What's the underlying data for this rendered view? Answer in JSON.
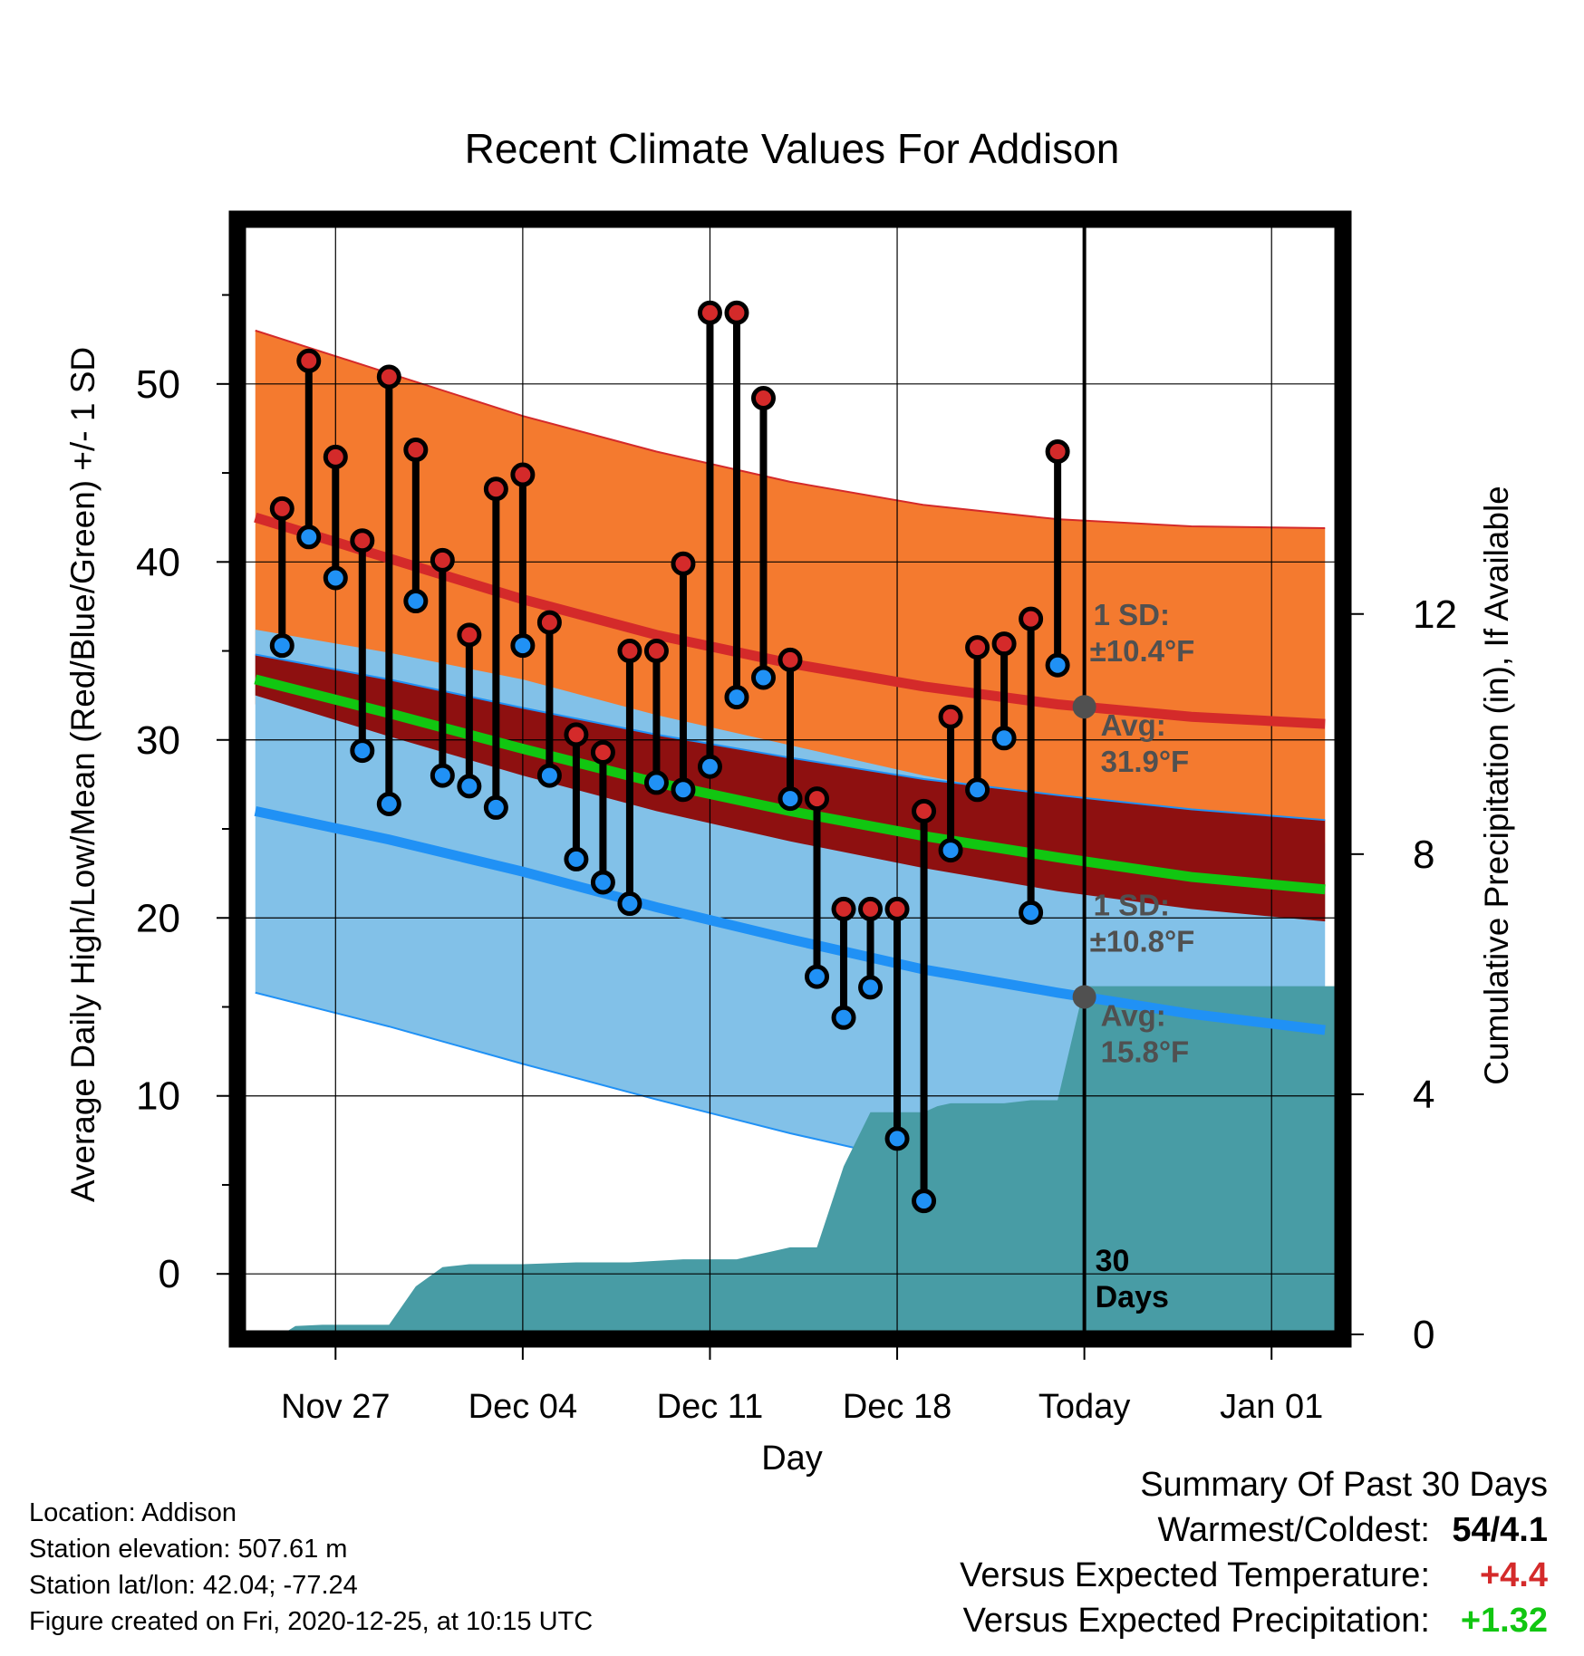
{
  "chart_data": {
    "type": "line",
    "title": "Recent Climate Values For Addison",
    "xlabel": "Day",
    "ylabel": "Average Daily High/Low/Mean (Red/Blue/Green) +/- 1 SD",
    "y2label": "Cumulative Precipitation (in), If Available",
    "x_ticks": [
      "Nov 27",
      "Dec 04",
      "Dec 11",
      "Dec 18",
      "Today",
      "Jan 01"
    ],
    "x_tick_days": [
      3,
      10,
      17,
      24,
      31,
      38
    ],
    "xlim": [
      -0.5,
      40.5
    ],
    "ylim": [
      -3.4,
      59
    ],
    "y_ticks": [
      0,
      10,
      20,
      30,
      40,
      50
    ],
    "y2lim": [
      0,
      18.5
    ],
    "y2_ticks": [
      0,
      4,
      8,
      12
    ],
    "grid": true,
    "today_day": 31,
    "colors": {
      "high": "#d42a2a",
      "low": "#2091f5",
      "mean": "#11c611",
      "high_band": "#f47a2f",
      "low_band": "#82c1e8",
      "overlap_band": "#8e1010",
      "precip": "#489ca5",
      "annotation": "#505050"
    },
    "normals": {
      "x": [
        0,
        5,
        10,
        15,
        20,
        25,
        30,
        35,
        40
      ],
      "high_avg": [
        42.5,
        40.2,
        37.9,
        35.9,
        34.3,
        33.0,
        32.0,
        31.3,
        30.9
      ],
      "high_sd_upper": [
        53.0,
        50.6,
        48.2,
        46.2,
        44.5,
        43.2,
        42.4,
        42.0,
        41.9
      ],
      "low_avg": [
        26.0,
        24.4,
        22.6,
        20.6,
        18.8,
        17.1,
        15.8,
        14.6,
        13.7
      ],
      "low_sd_lower": [
        15.8,
        13.9,
        11.8,
        9.8,
        7.9,
        6.2,
        5.0,
        4.0,
        3.2
      ],
      "mean_avg": [
        33.4,
        31.5,
        29.5,
        27.6,
        26.0,
        24.6,
        23.4,
        22.3,
        21.6
      ],
      "overlap_upper": [
        34.8,
        33.4,
        31.8,
        30.3,
        29.0,
        27.8,
        26.9,
        26.1,
        25.5
      ],
      "overlap_lower": [
        32.5,
        30.2,
        28.0,
        26.0,
        24.3,
        22.8,
        21.5,
        20.5,
        19.8
      ]
    },
    "series": [
      {
        "name": "High",
        "x": [
          1,
          2,
          3,
          4,
          5,
          6,
          7,
          8,
          9,
          10,
          11,
          12,
          13,
          14,
          15,
          16,
          17,
          18,
          19,
          20,
          21,
          22,
          23,
          24,
          25,
          26,
          27,
          28,
          29,
          30
        ],
        "values": [
          43,
          51.3,
          45.9,
          41.2,
          50.4,
          46.3,
          40.1,
          35.9,
          44.1,
          44.9,
          36.6,
          30.3,
          29.3,
          35.0,
          35.0,
          39.9,
          54.0,
          54.0,
          49.2,
          34.5,
          26.7,
          20.5,
          20.5,
          20.5,
          26.0,
          31.3,
          35.2,
          35.4,
          36.8,
          46.2
        ]
      },
      {
        "name": "Low",
        "x": [
          1,
          2,
          3,
          4,
          5,
          6,
          7,
          8,
          9,
          10,
          11,
          12,
          13,
          14,
          15,
          16,
          17,
          18,
          19,
          20,
          21,
          22,
          23,
          24,
          25,
          26,
          27,
          28,
          29,
          30
        ],
        "values": [
          35.3,
          41.4,
          39.1,
          29.4,
          26.4,
          37.8,
          28.0,
          27.4,
          26.2,
          35.3,
          28.0,
          23.3,
          22.0,
          20.8,
          27.6,
          27.2,
          28.5,
          32.4,
          33.5,
          26.7,
          16.7,
          14.4,
          16.1,
          7.6,
          4.1,
          23.8,
          27.2,
          30.1,
          20.3,
          34.2
        ]
      }
    ],
    "precipitation": {
      "x": [
        0,
        1,
        1.5,
        2.5,
        4,
        5,
        6,
        7,
        8,
        10,
        12,
        14,
        16,
        18,
        20,
        21,
        22,
        23,
        24,
        25,
        25.5,
        26,
        27,
        28,
        29,
        30,
        31,
        40.5
      ],
      "values": [
        0,
        0,
        0.14,
        0.16,
        0.16,
        0.16,
        0.8,
        1.12,
        1.17,
        1.17,
        1.2,
        1.2,
        1.25,
        1.25,
        1.45,
        1.45,
        2.8,
        3.7,
        3.7,
        3.7,
        3.8,
        3.85,
        3.85,
        3.85,
        3.9,
        3.9,
        4.0,
        4.0
      ],
      "step_up_day": 30.2,
      "step_up_value": 5.8
    },
    "annotations": {
      "high_sd_label": "1 SD:",
      "high_sd_value": "±10.4°F",
      "high_avg_label": "Avg:",
      "high_avg_value": "31.9°F",
      "low_sd_label": "1 SD:",
      "low_sd_value": "±10.8°F",
      "low_avg_label": "Avg:",
      "low_avg_value": "15.8°F",
      "days_number": "30",
      "days_label": "Days"
    }
  },
  "info": {
    "location": "Location: Addison",
    "elevation": "Station elevation: 507.61 m",
    "latlon": "Station lat/lon: 42.04; -77.24",
    "created": "Figure created on Fri, 2020-12-25, at 10:15 UTC"
  },
  "summary": {
    "heading": "Summary Of Past 30 Days",
    "warmest_label": "Warmest/Coldest:",
    "warmest_value": "54/4.1",
    "temp_label": "Versus Expected Temperature:",
    "temp_value": "+4.4",
    "temp_color": "#d42a2a",
    "precip_label": "Versus Expected Precipitation:",
    "precip_value": "+1.32",
    "precip_color": "#11c611"
  }
}
